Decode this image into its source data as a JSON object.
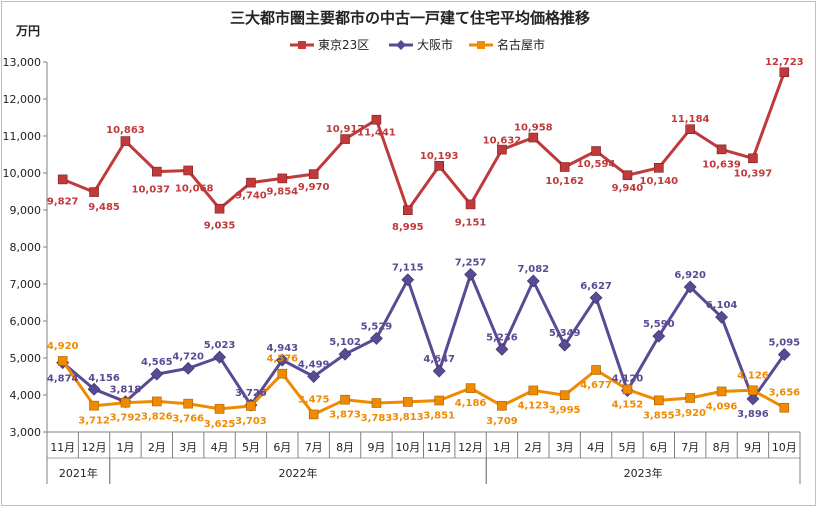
{
  "chart_data": {
    "type": "line",
    "title": "三大都市圏主要都市の中古一戸建て住宅平均価格推移",
    "ylabel": "万円",
    "ylim": [
      3000,
      13000
    ],
    "ytick_step": 1000,
    "grid": false,
    "legend_position": "top",
    "categories": [
      "11月",
      "12月",
      "1月",
      "2月",
      "3月",
      "4月",
      "5月",
      "6月",
      "7月",
      "8月",
      "9月",
      "10月",
      "11月",
      "12月",
      "1月",
      "2月",
      "3月",
      "4月",
      "5月",
      "6月",
      "7月",
      "8月",
      "9月",
      "10月"
    ],
    "year_groups": [
      {
        "label": "2021年",
        "start": 0,
        "count": 2
      },
      {
        "label": "2022年",
        "start": 2,
        "count": 12
      },
      {
        "label": "2023年",
        "start": 14,
        "count": 10
      }
    ],
    "series": [
      {
        "name": "東京23区",
        "color": "#c0393b",
        "marker": "square",
        "values": [
          9827,
          9485,
          10863,
          10037,
          10068,
          9035,
          9740,
          9854,
          9970,
          10917,
          11441,
          8995,
          10193,
          9151,
          10632,
          10958,
          10162,
          10594,
          9940,
          10140,
          11184,
          10639,
          10397,
          12723
        ],
        "labels": [
          "9,827",
          "9,485",
          "10,863",
          "10,037",
          "10,068",
          "9,035",
          "9,740",
          "9,854",
          "9,970",
          "10,917",
          "11,441",
          "8,995",
          "10,193",
          "9,151",
          "10,632",
          "10,958",
          "10,162",
          "10,594",
          "9,940",
          "10,140",
          "11,184",
          "10,639",
          "10,397",
          "12,723"
        ]
      },
      {
        "name": "大阪市",
        "color": "#5a4a94",
        "marker": "diamond",
        "values": [
          4874,
          4156,
          3818,
          4565,
          4720,
          5023,
          3726,
          4943,
          4499,
          5102,
          5529,
          7115,
          4647,
          7257,
          5236,
          7082,
          5349,
          6627,
          4120,
          5590,
          6920,
          6104,
          3896,
          5095
        ],
        "labels": [
          "4,874",
          "4,156",
          "3,818",
          "4,565",
          "4,720",
          "5,023",
          "3,726",
          "4,943",
          "4,499",
          "5,102",
          "5,529",
          "7,115",
          "4,647",
          "7,257",
          "5,236",
          "7,082",
          "5,349",
          "6,627",
          "4,120",
          "5,590",
          "6,920",
          "6,104",
          "3,896",
          "5,095"
        ]
      },
      {
        "name": "名古屋市",
        "color": "#f08a00",
        "marker": "square",
        "values": [
          4920,
          3712,
          3792,
          3826,
          3766,
          3625,
          3703,
          4576,
          3475,
          3873,
          3783,
          3813,
          3851,
          4186,
          3709,
          4123,
          3995,
          4677,
          4152,
          3855,
          3920,
          4096,
          4126,
          3656
        ],
        "labels": [
          "4,920",
          "3,712",
          "3,792",
          "3,826",
          "3,766",
          "3,625",
          "3,703",
          "4,576",
          "3,475",
          "3,873",
          "3,783",
          "3,813",
          "3,851",
          "4,186",
          "3,709",
          "4,123",
          "3,995",
          "4,677",
          "4,152",
          "3,855",
          "3,920",
          "4,096",
          "4,126",
          "3,656"
        ]
      }
    ]
  }
}
